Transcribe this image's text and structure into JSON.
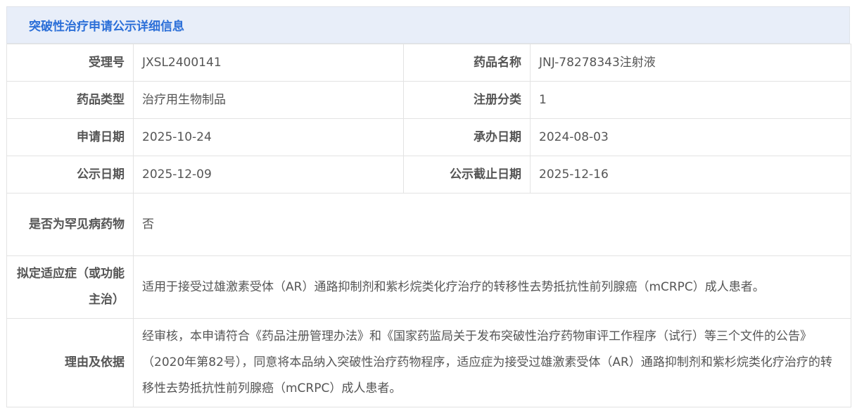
{
  "title": "突破性治疗申请公示详细信息",
  "rows": [
    {
      "l1": "受理号",
      "v1": "JXSL2400141",
      "l2": "药品名称",
      "v2": "JNJ-78278343注射液"
    },
    {
      "l1": "药品类型",
      "v1": "治疗用生物制品",
      "l2": "注册分类",
      "v2": "1"
    },
    {
      "l1": "申请日期",
      "v1": "2025-10-24",
      "l2": "承办日期",
      "v2": "2024-08-03"
    },
    {
      "l1": "公示日期",
      "v1": "2025-12-09",
      "l2": "公示截止日期",
      "v2": "2025-12-16"
    }
  ],
  "rare": {
    "label": "是否为罕见病药物",
    "value": "否"
  },
  "indication": {
    "label": "拟定适应症（或功能主治）",
    "value": "适用于接受过雄激素受体（AR）通路抑制剂和紫杉烷类化疗治疗的转移性去势抵抗性前列腺癌（mCRPC）成人患者。"
  },
  "reason": {
    "label": "理由及依据",
    "value": "经审核，本申请符合《药品注册管理办法》和《国家药监局关于发布突破性治疗药物审评工作程序（试行）等三个文件的公告》（2020年第82号），同意将本品纳入突破性治疗药物程序，适应症为接受过雄激素受体（AR）通路抑制剂和紫杉烷类化疗治疗的转移性去势抵抗性前列腺癌（mCRPC）成人患者。"
  }
}
